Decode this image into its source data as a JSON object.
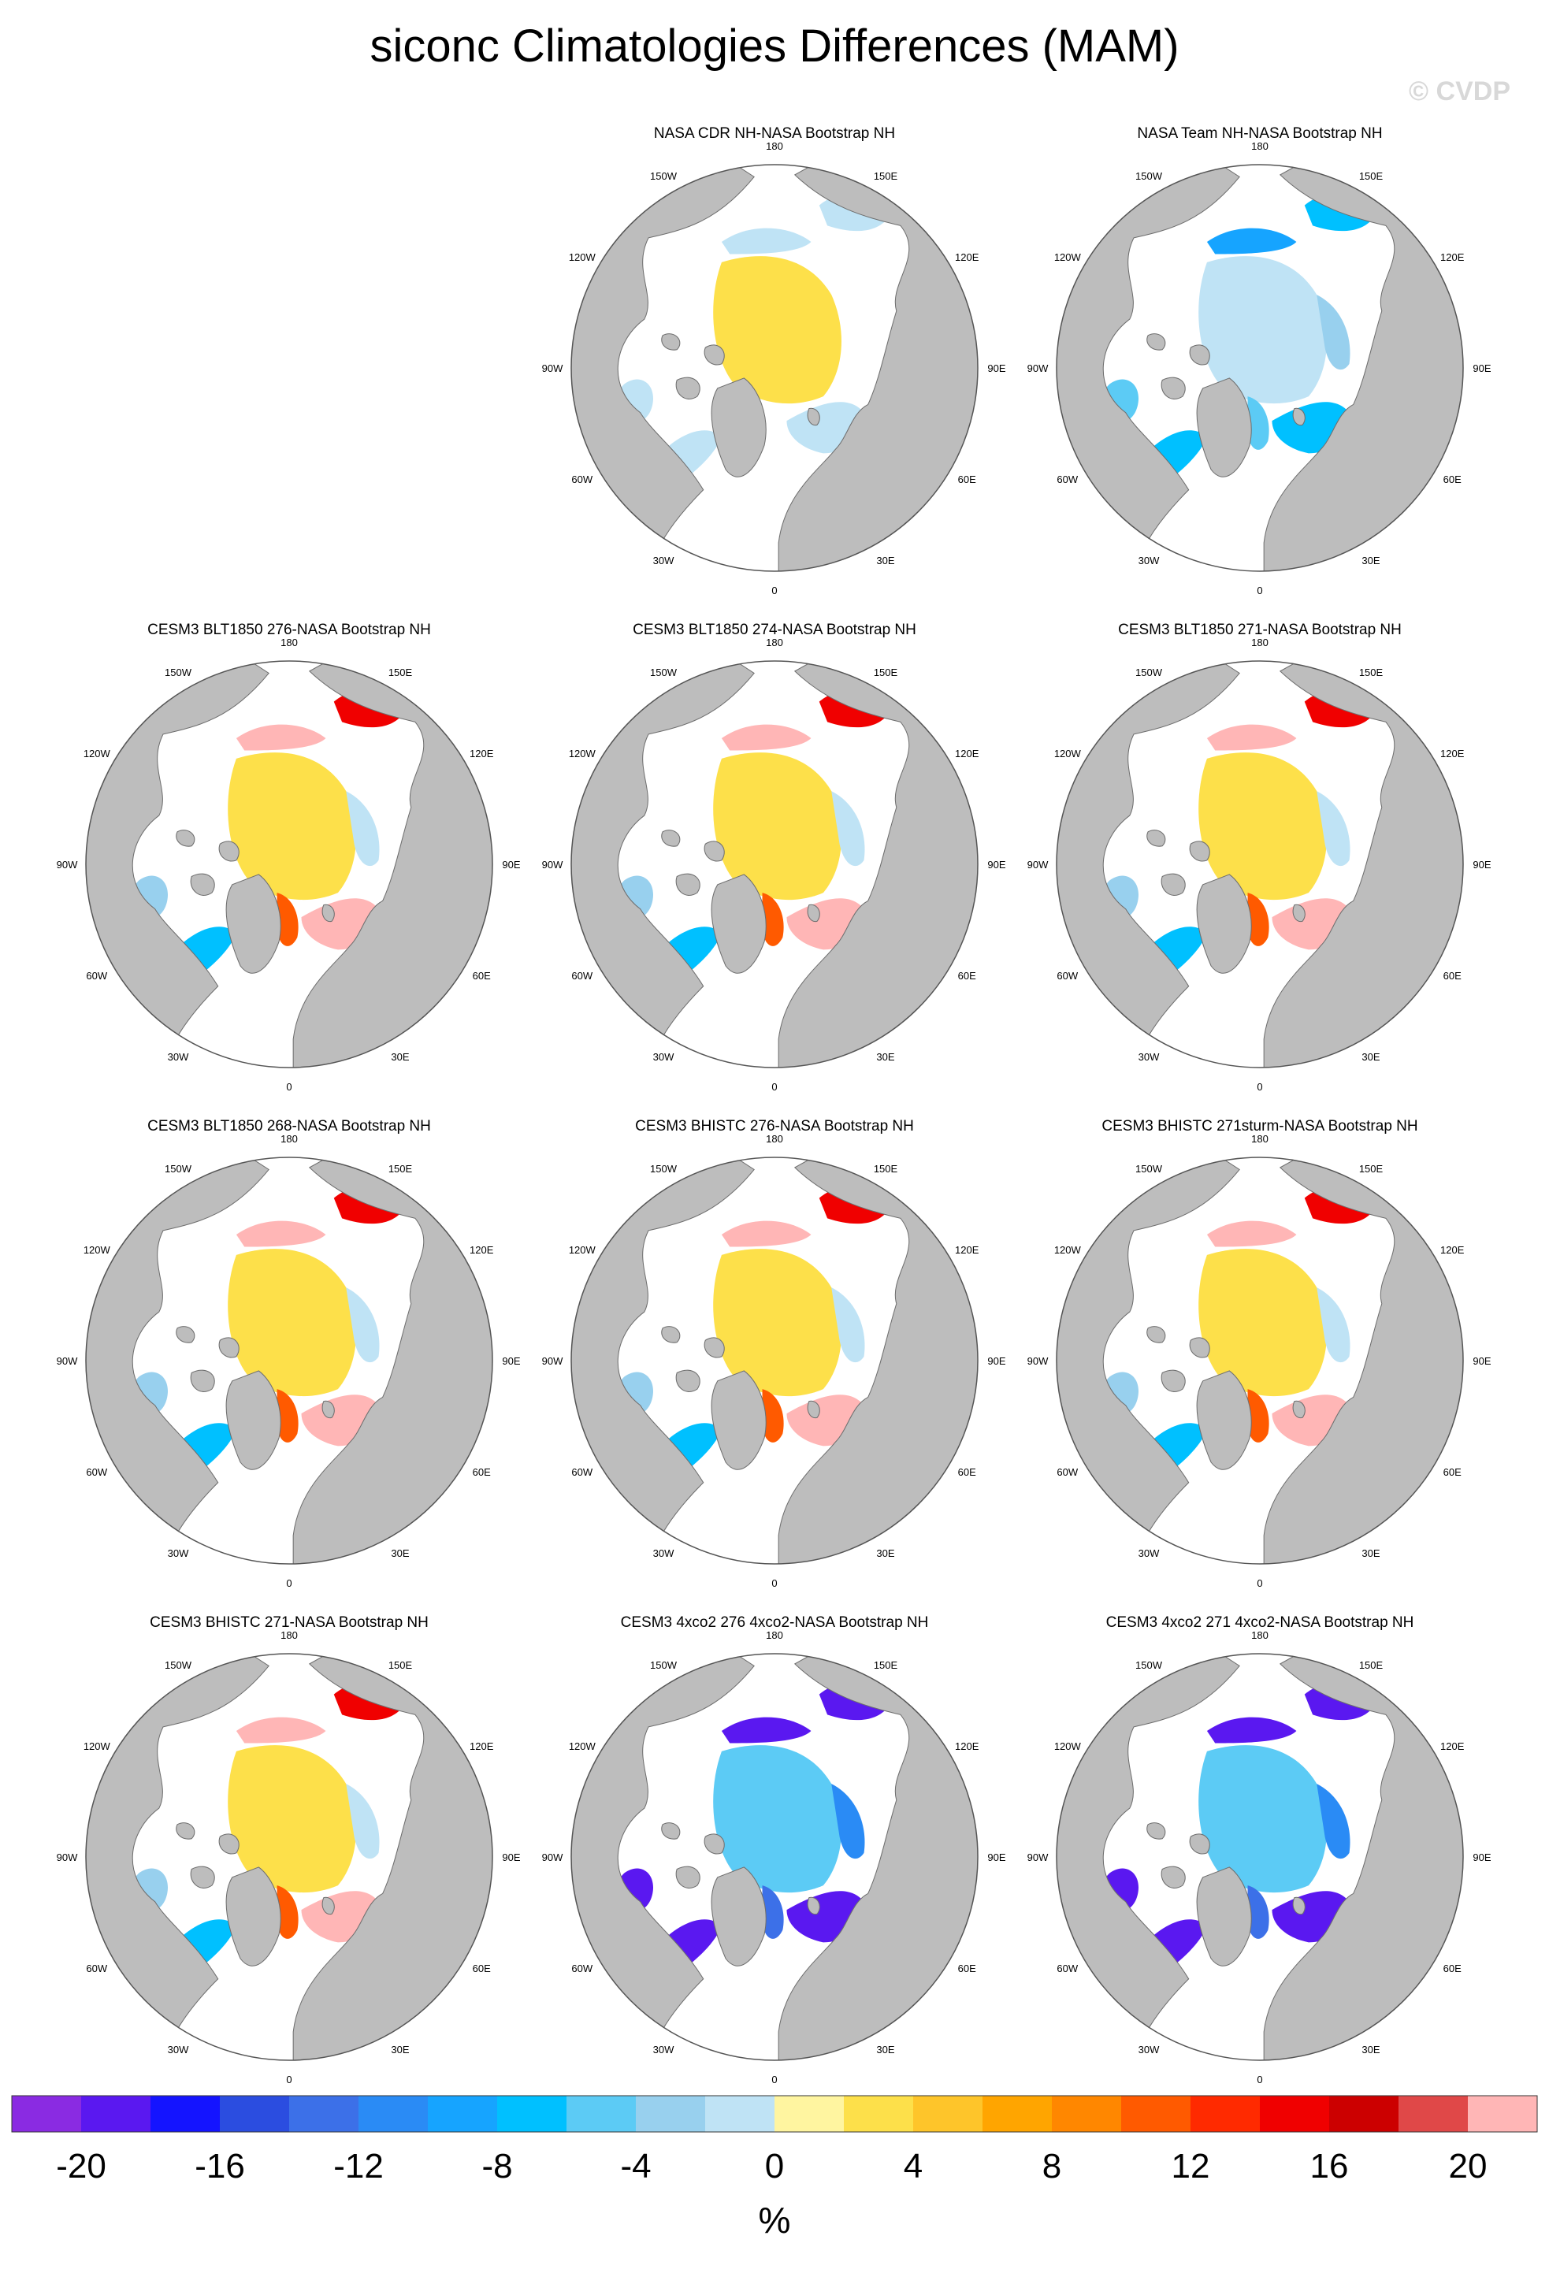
{
  "figure": {
    "title": "siconc Climatologies Differences (MAM)",
    "watermark": "© CVDP"
  },
  "colors": {
    "land": "#bdbdbd",
    "land_edge": "#6e6e6e",
    "frame": "#555555",
    "ocean": "#ffffff"
  },
  "lon_labels": [
    "180",
    "150E",
    "120E",
    "90E",
    "60E",
    "30E",
    "0",
    "30W",
    "60W",
    "90W",
    "120W",
    "150W"
  ],
  "chart_data": {
    "type": "heatmap",
    "projection": "north-polar-stereographic",
    "variable": "siconc",
    "season": "MAM",
    "panels": [
      {
        "title": "NASA CDR NH-NASA Bootstrap NH",
        "pattern": "obs_cdr"
      },
      {
        "title": "NASA Team NH-NASA Bootstrap NH",
        "pattern": "obs_team"
      },
      {
        "title": "CESM3 BLT1850 276-NASA Bootstrap NH",
        "pattern": "model"
      },
      {
        "title": "CESM3 BLT1850 274-NASA Bootstrap NH",
        "pattern": "model"
      },
      {
        "title": "CESM3 BLT1850 271-NASA Bootstrap NH",
        "pattern": "model"
      },
      {
        "title": "CESM3 BLT1850 268-NASA Bootstrap NH",
        "pattern": "model"
      },
      {
        "title": "CESM3 BHISTC 276-NASA Bootstrap NH",
        "pattern": "model"
      },
      {
        "title": "CESM3 BHISTC 271sturm-NASA Bootstrap NH",
        "pattern": "model"
      },
      {
        "title": "CESM3 BHISTC 271-NASA Bootstrap NH",
        "pattern": "model"
      },
      {
        "title": "CESM3 4xco2 276 4xco2-NASA Bootstrap NH",
        "pattern": "warm"
      },
      {
        "title": "CESM3 4xco2 271 4xco2-NASA Bootstrap NH",
        "pattern": "warm"
      }
    ],
    "colorbar": {
      "label": "%",
      "min": -22,
      "max": 22,
      "step": 2,
      "ticks": [
        -20,
        -16,
        -12,
        -8,
        -4,
        0,
        4,
        8,
        12,
        16,
        20
      ],
      "colors": [
        "#8a2be2",
        "#5a18f0",
        "#1414ff",
        "#2b4de0",
        "#3c70e8",
        "#2a8bf5",
        "#16a4ff",
        "#00c0ff",
        "#5ccbf5",
        "#98d0ee",
        "#bfe3f5",
        "#fff5a0",
        "#fde04a",
        "#fec52a",
        "#ffa500",
        "#ff8700",
        "#ff5a00",
        "#ff2a00",
        "#f00000",
        "#cc0000",
        "#e04848",
        "#ffb6b6"
      ]
    }
  }
}
